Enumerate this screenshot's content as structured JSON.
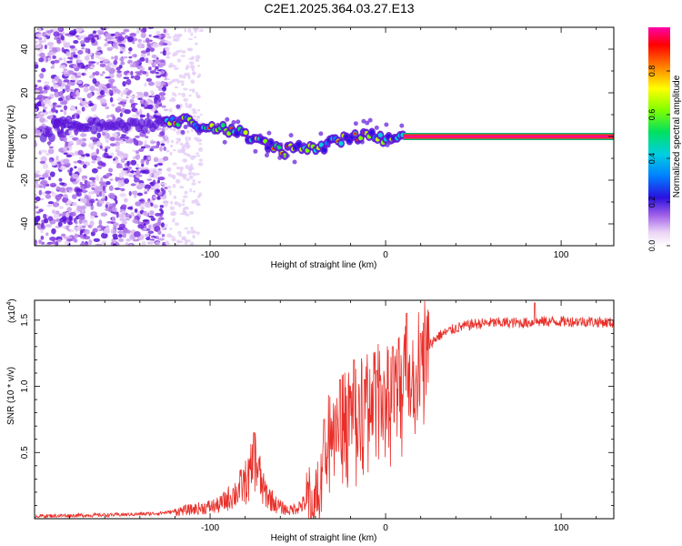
{
  "title": "C2E1.2025.364.03.27.E13",
  "chart_data": [
    {
      "type": "heatmap",
      "name": "spectrogram",
      "xlabel": "Height of straight line (km)",
      "ylabel": "Frequency (Hz)",
      "xlim": [
        -200,
        130
      ],
      "ylim": [
        -50,
        50
      ],
      "xticks": [
        -100,
        0,
        100
      ],
      "xtick_labels": [
        "-100",
        "0",
        "100"
      ],
      "yticks": [
        -40,
        -20,
        0,
        20,
        40
      ],
      "ytick_labels": [
        "-40",
        "-20",
        "0",
        "20",
        "40"
      ],
      "noise_until_km": -125,
      "carrier_start_km": 10,
      "trace": [
        [
          -190,
          7
        ],
        [
          -175,
          5
        ],
        [
          -160,
          5
        ],
        [
          -140,
          5
        ],
        [
          -125,
          7
        ],
        [
          -115,
          7
        ],
        [
          -105,
          5
        ],
        [
          -95,
          4
        ],
        [
          -85,
          2
        ],
        [
          -75,
          -1
        ],
        [
          -65,
          -4
        ],
        [
          -58,
          -7
        ],
        [
          -52,
          -5
        ],
        [
          -45,
          -5
        ],
        [
          -38,
          -5
        ],
        [
          -30,
          -3
        ],
        [
          -22,
          -1
        ],
        [
          -15,
          0
        ],
        [
          -8,
          1
        ],
        [
          -2,
          -1
        ],
        [
          3,
          0
        ],
        [
          8,
          1
        ],
        [
          130,
          0
        ]
      ],
      "colorbar": {
        "label": "Normalized spectral amplitude",
        "range": [
          0,
          1
        ],
        "ticks": [
          0.0,
          0.2,
          0.4,
          0.6,
          0.8
        ],
        "tick_labels": [
          "0.0",
          "0.2",
          "0.4",
          "0.6",
          "0.8"
        ]
      }
    },
    {
      "type": "line",
      "name": "snr",
      "xlabel": "Height of straight line (km)",
      "ylabel": "SNR (10 * v/v)",
      "y_multiplier": "(x10",
      "y_multiplier_exp": "4",
      "xlim": [
        -200,
        130
      ],
      "ylim": [
        0,
        1.65
      ],
      "xticks": [
        -100,
        0,
        100
      ],
      "xtick_labels": [
        "-100",
        "0",
        "100"
      ],
      "yticks": [
        0.5,
        1.0,
        1.5
      ],
      "ytick_labels": [
        "0.5",
        "1.0",
        "1.5"
      ],
      "color": "#e8302a",
      "series": {
        "x": [
          -200,
          -150,
          -130,
          -110,
          -95,
          -85,
          -78,
          -74,
          -70,
          -62,
          -55,
          -48,
          -42,
          -38,
          -33,
          -30,
          -27,
          -22,
          -15,
          -10,
          -5,
          0,
          5,
          10,
          15,
          20,
          30,
          40,
          50,
          60,
          80,
          90,
          100,
          115,
          130
        ],
        "y": [
          0.02,
          0.03,
          0.04,
          0.07,
          0.1,
          0.2,
          0.3,
          0.45,
          0.22,
          0.1,
          0.06,
          0.1,
          0.15,
          0.25,
          0.55,
          0.9,
          0.7,
          0.8,
          0.85,
          0.9,
          1.0,
          1.0,
          0.95,
          1.05,
          1.1,
          1.25,
          1.38,
          1.44,
          1.47,
          1.48,
          1.48,
          1.49,
          1.49,
          1.49,
          1.48
        ],
        "spikes": [
          [
            -75,
            0.65
          ],
          [
            -35,
            0.75
          ],
          [
            -26,
            1.05
          ],
          [
            -18,
            1.2
          ],
          [
            -12,
            1.05
          ],
          [
            -5,
            1.12
          ],
          [
            4,
            1.3
          ],
          [
            12,
            1.55
          ],
          [
            20,
            1.4
          ],
          [
            85,
            1.63
          ]
        ]
      }
    }
  ]
}
